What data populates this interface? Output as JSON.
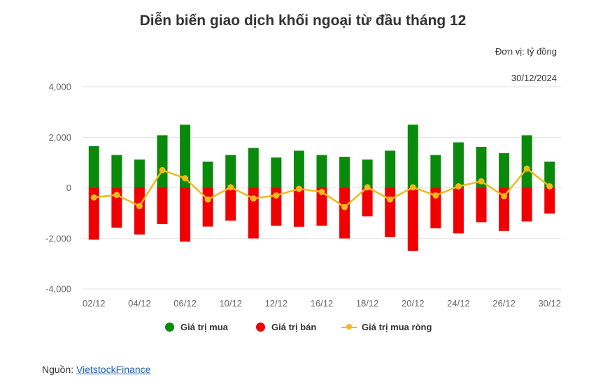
{
  "title": "Diễn biến giao dịch khối ngoại từ đầu tháng 12",
  "unit_label": "Đơn vị: tỷ đồng",
  "date_label": "30/12/2024",
  "source": {
    "prefix": "Nguồn: ",
    "link_text": "VietstockFinance"
  },
  "colors": {
    "buy": "#0a8a0a",
    "sell": "#f00000",
    "net": "#f2b81c",
    "grid": "#e0e0e0",
    "axis_text": "#666666"
  },
  "chart_data": {
    "type": "bar",
    "title": "Diễn biến giao dịch khối ngoại từ đầu tháng 12",
    "ylim": [
      -4000,
      4000
    ],
    "yticks": [
      4000,
      2000,
      0,
      -2000,
      -4000
    ],
    "ytick_labels": [
      "4,000",
      "2,000",
      "0",
      "-2,000",
      "-4,000"
    ],
    "grid": true,
    "legend_position": "bottom",
    "categories": [
      "02/12",
      "03/12",
      "04/12",
      "05/12",
      "06/12",
      "09/12",
      "10/12",
      "11/12",
      "12/12",
      "13/12",
      "16/12",
      "17/12",
      "18/12",
      "19/12",
      "20/12",
      "23/12",
      "24/12",
      "25/12",
      "26/12",
      "27/12",
      "30/12"
    ],
    "xtick_labels": [
      "02/12",
      "",
      "04/12",
      "",
      "06/12",
      "",
      "10/12",
      "",
      "12/12",
      "",
      "16/12",
      "",
      "18/12",
      "",
      "20/12",
      "",
      "24/12",
      "",
      "26/12",
      "",
      "30/12"
    ],
    "series": [
      {
        "name": "Giá trị mua",
        "type": "bar",
        "color": "#0a8a0a",
        "values": [
          1650,
          1300,
          1120,
          2080,
          2500,
          1040,
          1300,
          1580,
          1200,
          1470,
          1300,
          1230,
          1120,
          1470,
          2500,
          1300,
          1800,
          1620,
          1370,
          2080,
          1040
        ]
      },
      {
        "name": "Giá trị bán",
        "type": "bar",
        "color": "#f00000",
        "values": [
          -2050,
          -1580,
          -1850,
          -1430,
          -2130,
          -1530,
          -1300,
          -2000,
          -1500,
          -1540,
          -1500,
          -2000,
          -1130,
          -1950,
          -2500,
          -1600,
          -1800,
          -1360,
          -1700,
          -1330,
          -1020
        ]
      },
      {
        "name": "Giá trị mua ròng",
        "type": "line",
        "color": "#f2b81c",
        "values": [
          -380,
          -280,
          -720,
          700,
          380,
          -460,
          20,
          -420,
          -300,
          -40,
          -160,
          -760,
          20,
          -460,
          20,
          -300,
          60,
          260,
          -330,
          760,
          60
        ]
      }
    ]
  }
}
